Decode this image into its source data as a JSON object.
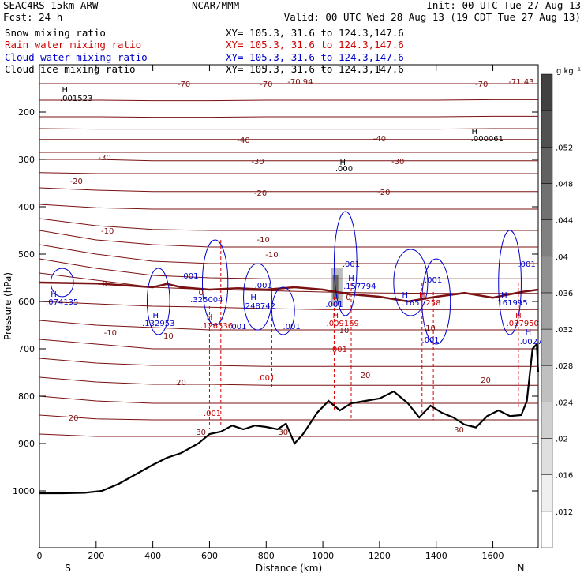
{
  "header": {
    "line1_left": "SEAC4RS 15km ARW",
    "line1_center": "NCAR/MMM",
    "line1_right": "Init: 00 UTC Tue 27 Aug 13",
    "line2_left": "Fcst:    24 h",
    "line2_right": "Valid: 00 UTC Wed 28 Aug 13 (19 CDT Tue 27 Aug 13)",
    "fields": [
      {
        "name": "Snow mixing ratio",
        "xy": "XY= 105.3, 31.6 to 124.3,147.6",
        "color": "#000000"
      },
      {
        "name": "Rain water mixing ratio",
        "xy": "XY= 105.3, 31.6 to 124.3,147.6",
        "color": "#cc0000"
      },
      {
        "name": "Cloud water mixing ratio",
        "xy": "XY= 105.3, 31.6 to 124.3,147.6",
        "color": "#0000cc"
      },
      {
        "name": "Cloud ice mixing ratio",
        "xy": "XY= 105.3, 31.6 to 124.3,147.6",
        "color": "#000000"
      }
    ]
  },
  "chart_data": {
    "type": "cross-section",
    "xlabel": "Distance (km)",
    "ylabel": "Pressure (hPa)",
    "xlim": [
      0,
      1760
    ],
    "ylim": [
      1050,
      100
    ],
    "x_ticks": [
      0,
      200,
      400,
      600,
      800,
      1000,
      1200,
      1400,
      1600
    ],
    "y_ticks": [
      200,
      300,
      400,
      500,
      600,
      700,
      800,
      900,
      1000
    ],
    "end_labels": {
      "left": "S",
      "right": "N"
    },
    "colorbar": {
      "unit": "g kg⁻¹",
      "ticks": [
        ".012",
        ".016",
        ".02",
        ".024",
        ".028",
        ".032",
        ".036",
        ".04",
        ".044",
        ".048",
        ".052"
      ],
      "levels": [
        0.012,
        0.016,
        0.02,
        0.024,
        0.028,
        0.032,
        0.036,
        0.04,
        0.044,
        0.048,
        0.052
      ]
    },
    "temperature_labels": [
      {
        "text": "-70",
        "x": 510,
        "p": 140
      },
      {
        "text": "-70",
        "x": 800,
        "p": 140
      },
      {
        "text": "-70.94",
        "x": 920,
        "p": 135
      },
      {
        "text": "-70",
        "x": 1560,
        "p": 140
      },
      {
        "text": "-71.43",
        "x": 1700,
        "p": 135
      },
      {
        "text": "-40",
        "x": 720,
        "p": 258
      },
      {
        "text": "-40",
        "x": 1200,
        "p": 255
      },
      {
        "text": "-30",
        "x": 230,
        "p": 295
      },
      {
        "text": "-30",
        "x": 770,
        "p": 303
      },
      {
        "text": "-30",
        "x": 1265,
        "p": 303
      },
      {
        "text": "-20",
        "x": 130,
        "p": 345
      },
      {
        "text": "-20",
        "x": 780,
        "p": 370
      },
      {
        "text": "-20",
        "x": 1215,
        "p": 368
      },
      {
        "text": "-10",
        "x": 240,
        "p": 450
      },
      {
        "text": "-10",
        "x": 790,
        "p": 468
      },
      {
        "text": "-10",
        "x": 820,
        "p": 500
      },
      {
        "text": "0",
        "x": 230,
        "p": 562
      },
      {
        "text": "0",
        "x": 570,
        "p": 580
      },
      {
        "text": "0",
        "x": 1090,
        "p": 590
      },
      {
        "text": "-10",
        "x": 250,
        "p": 665
      },
      {
        "text": "10",
        "x": 455,
        "p": 672
      },
      {
        "text": "10",
        "x": 1075,
        "p": 660
      },
      {
        "text": "10",
        "x": 1380,
        "p": 655
      },
      {
        "text": "20",
        "x": 120,
        "p": 845
      },
      {
        "text": "20",
        "x": 500,
        "p": 770
      },
      {
        "text": "20",
        "x": 1150,
        "p": 755
      },
      {
        "text": "20",
        "x": 1575,
        "p": 765
      },
      {
        "text": "30",
        "x": 570,
        "p": 875
      },
      {
        "text": "30",
        "x": 860,
        "p": 875
      },
      {
        "text": "30",
        "x": 1480,
        "p": 870
      }
    ],
    "max_labels": [
      {
        "text": "H",
        "x": 90,
        "p": 152,
        "color": "#000000"
      },
      {
        "text": ".001523",
        "x": 130,
        "p": 170,
        "color": "#000000"
      },
      {
        "text": "H",
        "x": 1535,
        "p": 240,
        "color": "#000000"
      },
      {
        "text": ".000061",
        "x": 1580,
        "p": 255,
        "color": "#000000"
      },
      {
        "text": "H",
        "x": 1070,
        "p": 305,
        "color": "#000000"
      },
      {
        "text": ".000",
        "x": 1075,
        "p": 318,
        "color": "#000000"
      },
      {
        "text": "H",
        "x": 50,
        "p": 583,
        "color": "#0000cc"
      },
      {
        "text": ".074135",
        "x": 80,
        "p": 600,
        "color": "#0000cc"
      },
      {
        "text": "H",
        "x": 410,
        "p": 628,
        "color": "#0000cc"
      },
      {
        "text": ".132953",
        "x": 420,
        "p": 645,
        "color": "#0000cc"
      },
      {
        "text": ".001",
        "x": 530,
        "p": 545,
        "color": "#0000cc"
      },
      {
        "text": ".325004",
        "x": 590,
        "p": 595,
        "color": "#0000cc"
      },
      {
        "text": "H",
        "x": 755,
        "p": 590,
        "color": "#0000cc"
      },
      {
        "text": ".248742",
        "x": 775,
        "p": 608,
        "color": "#0000cc"
      },
      {
        "text": ".001",
        "x": 790,
        "p": 565,
        "color": "#0000cc"
      },
      {
        "text": ".001",
        "x": 700,
        "p": 652,
        "color": "#0000cc"
      },
      {
        "text": ".001",
        "x": 890,
        "p": 652,
        "color": "#0000cc"
      },
      {
        "text": ".001",
        "x": 1100,
        "p": 520,
        "color": "#0000cc"
      },
      {
        "text": "H",
        "x": 1100,
        "p": 550,
        "color": "#0000cc"
      },
      {
        "text": ".157794",
        "x": 1130,
        "p": 567,
        "color": "#0000cc"
      },
      {
        "text": ".001",
        "x": 1040,
        "p": 605,
        "color": "#0000cc"
      },
      {
        "text": ".001",
        "x": 1390,
        "p": 553,
        "color": "#0000cc"
      },
      {
        "text": "H",
        "x": 1290,
        "p": 585,
        "color": "#0000cc"
      },
      {
        "text": ".165",
        "x": 1310,
        "p": 602,
        "color": "#0000cc"
      },
      {
        "text": "H",
        "x": 1640,
        "p": 585,
        "color": "#0000cc"
      },
      {
        "text": ".161995",
        "x": 1665,
        "p": 602,
        "color": "#0000cc"
      },
      {
        "text": ".001",
        "x": 1380,
        "p": 680,
        "color": "#0000cc"
      },
      {
        "text": ".001",
        "x": 1720,
        "p": 520,
        "color": "#0000cc"
      },
      {
        "text": "H",
        "x": 1725,
        "p": 663,
        "color": "#0000cc"
      },
      {
        "text": ".0027",
        "x": 1735,
        "p": 683,
        "color": "#0000cc"
      },
      {
        "text": "H",
        "x": 600,
        "p": 632,
        "color": "#cc0000"
      },
      {
        "text": ".126536",
        "x": 625,
        "p": 650,
        "color": "#cc0000"
      },
      {
        "text": "H",
        "x": 1045,
        "p": 628,
        "color": "#cc0000"
      },
      {
        "text": ".009169",
        "x": 1070,
        "p": 645,
        "color": "#cc0000"
      },
      {
        "text": ".001",
        "x": 1055,
        "p": 700,
        "color": "#cc0000"
      },
      {
        "text": "H",
        "x": 1350,
        "p": 585,
        "color": "#cc0000"
      },
      {
        "text": ".258",
        "x": 1385,
        "p": 602,
        "color": "#cc0000"
      },
      {
        "text": "H",
        "x": 1690,
        "p": 628,
        "color": "#cc0000"
      },
      {
        "text": ".037950",
        "x": 1705,
        "p": 645,
        "color": "#cc0000"
      },
      {
        "text": ".001",
        "x": 800,
        "p": 760,
        "color": "#cc0000"
      },
      {
        "text": ".001",
        "x": 610,
        "p": 835,
        "color": "#cc0000"
      }
    ],
    "terrain_pressure": [
      [
        0,
        1005
      ],
      [
        80,
        1005
      ],
      [
        160,
        1004
      ],
      [
        220,
        1000
      ],
      [
        280,
        985
      ],
      [
        340,
        965
      ],
      [
        400,
        945
      ],
      [
        450,
        930
      ],
      [
        500,
        920
      ],
      [
        560,
        900
      ],
      [
        600,
        880
      ],
      [
        640,
        875
      ],
      [
        680,
        862
      ],
      [
        720,
        870
      ],
      [
        760,
        862
      ],
      [
        800,
        865
      ],
      [
        840,
        870
      ],
      [
        870,
        858
      ],
      [
        900,
        900
      ],
      [
        930,
        880
      ],
      [
        980,
        835
      ],
      [
        1020,
        810
      ],
      [
        1060,
        830
      ],
      [
        1100,
        815
      ],
      [
        1150,
        810
      ],
      [
        1200,
        805
      ],
      [
        1250,
        790
      ],
      [
        1300,
        815
      ],
      [
        1340,
        845
      ],
      [
        1380,
        820
      ],
      [
        1420,
        835
      ],
      [
        1460,
        845
      ],
      [
        1500,
        860
      ],
      [
        1540,
        866
      ],
      [
        1580,
        842
      ],
      [
        1620,
        830
      ],
      [
        1660,
        842
      ],
      [
        1700,
        840
      ],
      [
        1720,
        810
      ],
      [
        1740,
        700
      ],
      [
        1755,
        690
      ],
      [
        1760,
        750
      ]
    ],
    "isotherm_pressures": [
      [
        140,
        140,
        140,
        140,
        140,
        140,
        140,
        140,
        140,
        140
      ],
      [
        175,
        175,
        176,
        176,
        175,
        175,
        175,
        175,
        174,
        174
      ],
      [
        210,
        210,
        211,
        211,
        210,
        210,
        210,
        210,
        209,
        209
      ],
      [
        235,
        236,
        236,
        236,
        236,
        236,
        236,
        236,
        235,
        235
      ],
      [
        258,
        258,
        258,
        258,
        258,
        258,
        258,
        258,
        258,
        258
      ],
      [
        285,
        285,
        285,
        285,
        285,
        285,
        285,
        285,
        285,
        285
      ],
      [
        300,
        300,
        303,
        303,
        303,
        303,
        303,
        303,
        303,
        303
      ],
      [
        328,
        330,
        330,
        330,
        330,
        330,
        330,
        330,
        330,
        330
      ],
      [
        360,
        365,
        368,
        368,
        368,
        368,
        368,
        368,
        368,
        368
      ],
      [
        395,
        402,
        405,
        405,
        405,
        405,
        405,
        405,
        405,
        405
      ],
      [
        425,
        440,
        448,
        450,
        450,
        450,
        450,
        450,
        450,
        450
      ],
      [
        450,
        470,
        480,
        485,
        485,
        485,
        485,
        485,
        485,
        485
      ],
      [
        480,
        500,
        515,
        520,
        520,
        520,
        520,
        520,
        520,
        520
      ],
      [
        510,
        530,
        545,
        550,
        552,
        552,
        552,
        552,
        552,
        552
      ],
      [
        540,
        555,
        570,
        575,
        577,
        580,
        582,
        583,
        583,
        583
      ],
      [
        600,
        605,
        610,
        612,
        615,
        617,
        617,
        617,
        617,
        617
      ],
      [
        640,
        650,
        655,
        660,
        660,
        660,
        660,
        660,
        660,
        660
      ],
      [
        680,
        690,
        700,
        700,
        700,
        700,
        700,
        700,
        700,
        700
      ],
      [
        720,
        730,
        735,
        735,
        737,
        737,
        737,
        737,
        737,
        737
      ],
      [
        760,
        770,
        775,
        775,
        777,
        777,
        777,
        777,
        777,
        777
      ],
      [
        800,
        810,
        815,
        815,
        815,
        815,
        815,
        815,
        815,
        815
      ],
      [
        840,
        848,
        850,
        850,
        850,
        850,
        850,
        850,
        850,
        850
      ],
      [
        880,
        885,
        885,
        885,
        885,
        885,
        885,
        885,
        885,
        885
      ]
    ],
    "isotherm_x": [
      0,
      200,
      400,
      600,
      800,
      1000,
      1200,
      1400,
      1600,
      1760
    ],
    "freezing_line": [
      [
        0,
        560
      ],
      [
        200,
        562
      ],
      [
        400,
        570
      ],
      [
        450,
        563
      ],
      [
        500,
        570
      ],
      [
        600,
        575
      ],
      [
        700,
        572
      ],
      [
        800,
        575
      ],
      [
        900,
        570
      ],
      [
        1000,
        575
      ],
      [
        1100,
        585
      ],
      [
        1200,
        590
      ],
      [
        1300,
        600
      ],
      [
        1400,
        590
      ],
      [
        1500,
        582
      ],
      [
        1600,
        592
      ],
      [
        1700,
        580
      ],
      [
        1760,
        575
      ]
    ]
  }
}
